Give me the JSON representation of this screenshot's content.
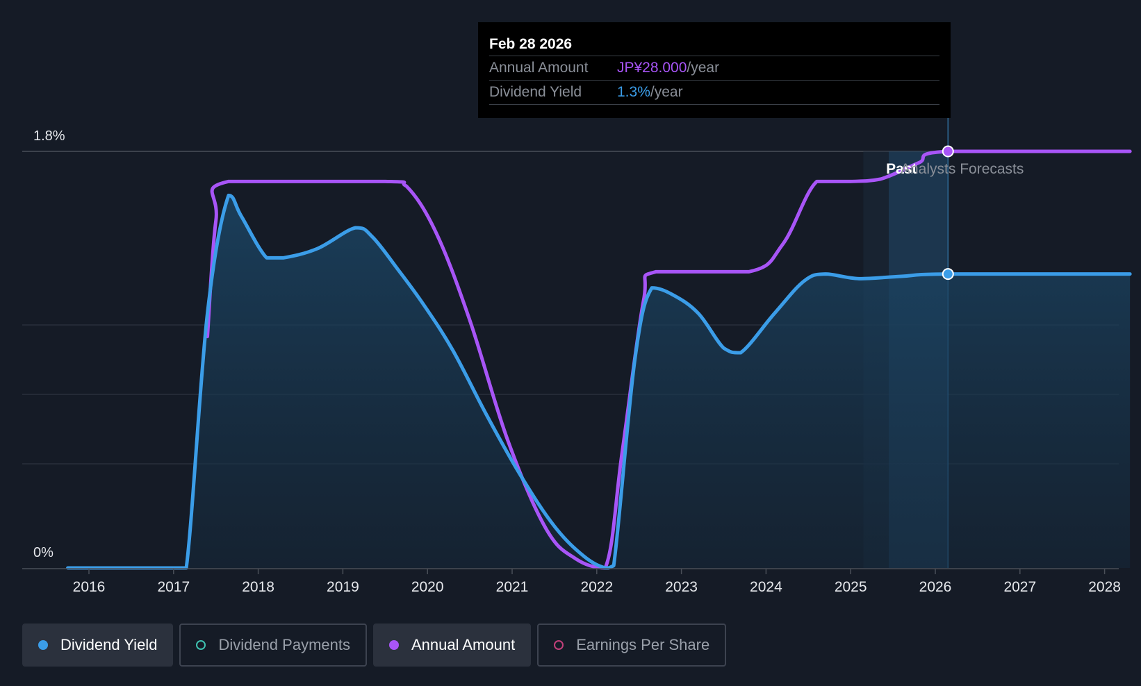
{
  "chart_data": {
    "type": "line",
    "x_ticks": [
      "2016",
      "2017",
      "2018",
      "2019",
      "2020",
      "2021",
      "2022",
      "2023",
      "2024",
      "2025",
      "2026",
      "2027",
      "2028"
    ],
    "y_ticks": [
      "1.8%",
      "0%"
    ],
    "ylim": [
      0,
      1.8
    ],
    "xlim": [
      2015.75,
      2028.3
    ],
    "grid": true,
    "series": [
      {
        "name": "Dividend Yield",
        "color": "#3b9de8",
        "filled": true,
        "points": [
          [
            2015.75,
            0
          ],
          [
            2017.0,
            0
          ],
          [
            2017.15,
            0.0
          ],
          [
            2017.4,
            1.1
          ],
          [
            2017.65,
            1.61
          ],
          [
            2017.8,
            1.52
          ],
          [
            2018.1,
            1.34
          ],
          [
            2018.3,
            1.34
          ],
          [
            2018.7,
            1.38
          ],
          [
            2019.15,
            1.47
          ],
          [
            2019.35,
            1.43
          ],
          [
            2019.65,
            1.29
          ],
          [
            2019.95,
            1.14
          ],
          [
            2020.3,
            0.94
          ],
          [
            2020.7,
            0.66
          ],
          [
            2021.1,
            0.4
          ],
          [
            2021.5,
            0.18
          ],
          [
            2021.85,
            0.05
          ],
          [
            2022.1,
            0.0
          ],
          [
            2022.2,
            0.01
          ],
          [
            2022.45,
            0.9
          ],
          [
            2022.65,
            1.21
          ],
          [
            2022.9,
            1.18
          ],
          [
            2023.2,
            1.1
          ],
          [
            2023.5,
            0.95
          ],
          [
            2023.7,
            0.93
          ],
          [
            2024.1,
            1.1
          ],
          [
            2024.45,
            1.24
          ],
          [
            2024.7,
            1.27
          ],
          [
            2025.1,
            1.25
          ],
          [
            2025.6,
            1.26
          ],
          [
            2026.15,
            1.27
          ],
          [
            2028.3,
            1.27
          ]
        ]
      },
      {
        "name": "Annual Amount",
        "color": "#a855f7",
        "points": [
          [
            2017.4,
            1.0
          ],
          [
            2017.5,
            1.5
          ],
          [
            2017.65,
            1.67
          ],
          [
            2019.5,
            1.67
          ],
          [
            2019.75,
            1.65
          ],
          [
            2020.1,
            1.45
          ],
          [
            2020.5,
            1.07
          ],
          [
            2020.95,
            0.55
          ],
          [
            2021.4,
            0.17
          ],
          [
            2021.75,
            0.04
          ],
          [
            2022.1,
            0.0
          ],
          [
            2022.3,
            0.5
          ],
          [
            2022.55,
            1.15
          ],
          [
            2022.7,
            1.28
          ],
          [
            2023.8,
            1.28
          ],
          [
            2024.2,
            1.4
          ],
          [
            2024.6,
            1.67
          ],
          [
            2025.0,
            1.67
          ],
          [
            2025.35,
            1.68
          ],
          [
            2025.8,
            1.75
          ],
          [
            2026.15,
            1.8
          ],
          [
            2028.3,
            1.8
          ]
        ]
      }
    ],
    "past_label": "Past",
    "forecast_label": "Analysts Forecasts",
    "past_region": [
      2025.15,
      2026.15
    ],
    "highlight_region": [
      2025.45,
      2026.15
    ],
    "marker_x": 2026.15,
    "markers": [
      {
        "series": "Annual Amount",
        "x": 2026.15,
        "y": 1.8
      },
      {
        "series": "Dividend Yield",
        "x": 2026.15,
        "y": 1.27
      }
    ]
  },
  "tooltip": {
    "date": "Feb 28 2026",
    "amount_label": "Annual Amount",
    "amount_value": "JP¥28.000",
    "amount_unit": "/year",
    "yield_label": "Dividend Yield",
    "yield_value": "1.3%",
    "yield_unit": "/year"
  },
  "legend": [
    {
      "label": "Dividend Yield",
      "color": "#3b9de8",
      "active": true,
      "filled": true
    },
    {
      "label": "Dividend Payments",
      "color": "#3fc1b0",
      "active": false,
      "filled": false
    },
    {
      "label": "Annual Amount",
      "color": "#a855f7",
      "active": true,
      "filled": true
    },
    {
      "label": "Earnings Per Share",
      "color": "#c2407a",
      "active": false,
      "filled": false
    }
  ]
}
